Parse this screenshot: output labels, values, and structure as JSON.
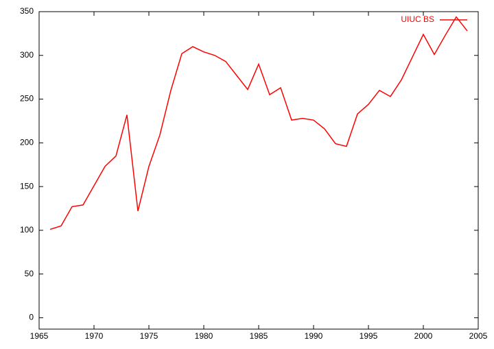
{
  "chart_data": {
    "type": "line",
    "x": [
      1966,
      1967,
      1968,
      1969,
      1970,
      1971,
      1972,
      1973,
      1974,
      1975,
      1976,
      1977,
      1978,
      1979,
      1980,
      1981,
      1982,
      1983,
      1984,
      1985,
      1986,
      1987,
      1988,
      1989,
      1990,
      1991,
      1992,
      1993,
      1994,
      1995,
      1996,
      1997,
      1998,
      1999,
      2000,
      2001,
      2002,
      2003,
      2004
    ],
    "series": [
      {
        "name": "UIUC BS",
        "color": "#ff0000",
        "values": [
          101,
          105,
          127,
          129,
          151,
          173,
          185,
          232,
          122,
          173,
          209,
          260,
          302,
          310,
          304,
          300,
          293,
          277,
          261,
          290,
          255,
          263,
          226,
          228,
          226,
          216,
          199,
          196,
          233,
          244,
          260,
          253,
          272,
          298,
          324,
          301,
          323,
          344,
          328
        ]
      }
    ],
    "xlim": [
      1965,
      2005
    ],
    "xticks": [
      1965,
      1970,
      1975,
      1980,
      1985,
      1990,
      1995,
      2000,
      2005
    ],
    "ylim": [
      -13,
      350
    ],
    "yticks": [
      0,
      50,
      100,
      150,
      200,
      250,
      300,
      350
    ],
    "legend": "top-right"
  }
}
